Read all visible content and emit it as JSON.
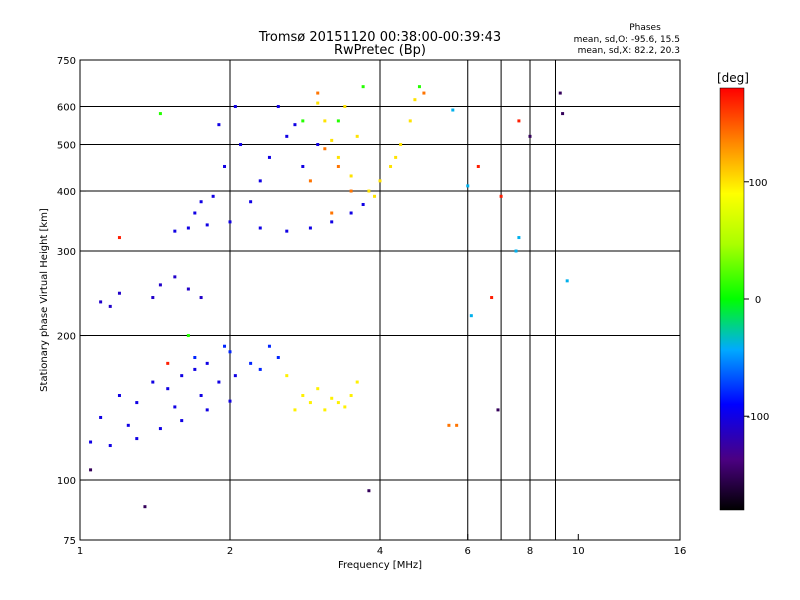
{
  "chart_data": {
    "type": "scatter",
    "title": "Tromsø 20151120 00:38:00-00:39:43",
    "subtitle": "RwPretec (Bp)",
    "xlabel": "Frequency [MHz]",
    "ylabel": "Stationary phase Virtual Height [km]",
    "x_scale": "log",
    "y_scale": "log",
    "xlim": [
      1,
      16
    ],
    "ylim": [
      75,
      750
    ],
    "x_ticks": [
      1,
      2,
      4,
      6,
      8,
      10,
      16
    ],
    "y_ticks": [
      75,
      100,
      200,
      300,
      400,
      500,
      600,
      750
    ],
    "x_gridlines": [
      2,
      4,
      6,
      7,
      8,
      9
    ],
    "y_gridlines": [
      100,
      200,
      300,
      400,
      500,
      600
    ],
    "grid": true,
    "info": {
      "header": "Phases",
      "line1": "mean, sd,O: -95.6, 15.5",
      "line2": "mean, sd,X:  82.2, 20.3"
    },
    "colorbar": {
      "unit": "[deg]",
      "min": -180,
      "max": 180,
      "ticks": [
        100,
        0,
        -100
      ]
    },
    "series": [
      {
        "color_value": -100,
        "points": [
          [
            1.05,
            120
          ],
          [
            1.15,
            118
          ],
          [
            1.3,
            122
          ],
          [
            1.45,
            128
          ],
          [
            1.6,
            133
          ],
          [
            1.8,
            140
          ],
          [
            2.0,
            146
          ],
          [
            1.2,
            150
          ],
          [
            1.4,
            160
          ],
          [
            1.6,
            165
          ],
          [
            1.8,
            175
          ],
          [
            1.1,
            135
          ],
          [
            1.3,
            145
          ],
          [
            1.5,
            155
          ],
          [
            1.7,
            170
          ],
          [
            1.9,
            160
          ],
          [
            1.25,
            130
          ],
          [
            1.55,
            142
          ],
          [
            1.75,
            150
          ],
          [
            2.05,
            165
          ]
        ]
      },
      {
        "color_value": -100,
        "points": [
          [
            1.55,
            330
          ],
          [
            1.65,
            335
          ],
          [
            1.8,
            340
          ],
          [
            2.0,
            345
          ],
          [
            2.3,
            335
          ],
          [
            2.6,
            330
          ],
          [
            2.9,
            335
          ],
          [
            3.2,
            345
          ],
          [
            3.5,
            360
          ],
          [
            3.7,
            375
          ],
          [
            1.7,
            360
          ],
          [
            1.85,
            390
          ],
          [
            1.95,
            450
          ],
          [
            1.9,
            550
          ],
          [
            2.1,
            500
          ],
          [
            2.3,
            420
          ],
          [
            2.5,
            600
          ],
          [
            2.7,
            550
          ],
          [
            2.2,
            380
          ],
          [
            2.4,
            470
          ],
          [
            2.6,
            520
          ],
          [
            2.8,
            450
          ],
          [
            3.0,
            500
          ],
          [
            1.75,
            380
          ],
          [
            2.05,
            600
          ]
        ]
      },
      {
        "color_value": -110,
        "points": [
          [
            1.1,
            235
          ],
          [
            1.15,
            230
          ],
          [
            1.45,
            255
          ],
          [
            1.55,
            265
          ],
          [
            1.65,
            250
          ],
          [
            1.4,
            240
          ],
          [
            1.2,
            245
          ],
          [
            1.75,
            240
          ]
        ]
      },
      {
        "color_value": 100,
        "points": [
          [
            3.0,
            610
          ],
          [
            3.1,
            560
          ],
          [
            3.2,
            510
          ],
          [
            3.3,
            470
          ],
          [
            3.5,
            430
          ],
          [
            3.4,
            600
          ],
          [
            3.6,
            520
          ],
          [
            3.8,
            400
          ],
          [
            4.0,
            420
          ],
          [
            4.2,
            450
          ],
          [
            4.4,
            500
          ],
          [
            4.6,
            560
          ],
          [
            4.7,
            620
          ],
          [
            3.9,
            390
          ],
          [
            4.3,
            470
          ]
        ]
      },
      {
        "color_value": 95,
        "points": [
          [
            2.8,
            150
          ],
          [
            2.9,
            145
          ],
          [
            3.1,
            140
          ],
          [
            3.3,
            145
          ],
          [
            3.5,
            150
          ],
          [
            3.6,
            160
          ],
          [
            3.0,
            155
          ],
          [
            3.2,
            148
          ],
          [
            3.4,
            142
          ],
          [
            2.6,
            165
          ],
          [
            2.7,
            140
          ]
        ]
      },
      {
        "color_value": 140,
        "points": [
          [
            3.1,
            490
          ],
          [
            3.3,
            450
          ],
          [
            3.5,
            400
          ],
          [
            3.2,
            360
          ],
          [
            2.9,
            420
          ],
          [
            3.0,
            640
          ],
          [
            5.5,
            130
          ],
          [
            5.7,
            130
          ],
          [
            4.9,
            640
          ]
        ]
      },
      {
        "color_value": -80,
        "points": [
          [
            2.5,
            180
          ],
          [
            2.3,
            170
          ],
          [
            2.2,
            175
          ],
          [
            2.4,
            190
          ],
          [
            1.95,
            190
          ],
          [
            1.7,
            180
          ],
          [
            2.0,
            185
          ]
        ]
      },
      {
        "color_value": 10,
        "points": [
          [
            1.45,
            580
          ],
          [
            3.3,
            560
          ],
          [
            2.8,
            560
          ],
          [
            1.65,
            200
          ],
          [
            4.8,
            660
          ],
          [
            3.7,
            660
          ]
        ]
      },
      {
        "color_value": -40,
        "points": [
          [
            6.0,
            410
          ],
          [
            7.5,
            300
          ],
          [
            7.6,
            320
          ],
          [
            9.5,
            260
          ],
          [
            5.6,
            590
          ],
          [
            6.1,
            220
          ]
        ]
      },
      {
        "color_value": -150,
        "points": [
          [
            9.2,
            640
          ],
          [
            9.3,
            580
          ],
          [
            8.0,
            520
          ],
          [
            6.9,
            140
          ],
          [
            1.35,
            88
          ],
          [
            3.8,
            95
          ],
          [
            1.05,
            105
          ]
        ]
      },
      {
        "color_value": 170,
        "points": [
          [
            7.0,
            390
          ],
          [
            7.6,
            560
          ],
          [
            6.7,
            240
          ],
          [
            6.3,
            450
          ],
          [
            1.2,
            320
          ],
          [
            1.5,
            175
          ]
        ]
      }
    ]
  }
}
